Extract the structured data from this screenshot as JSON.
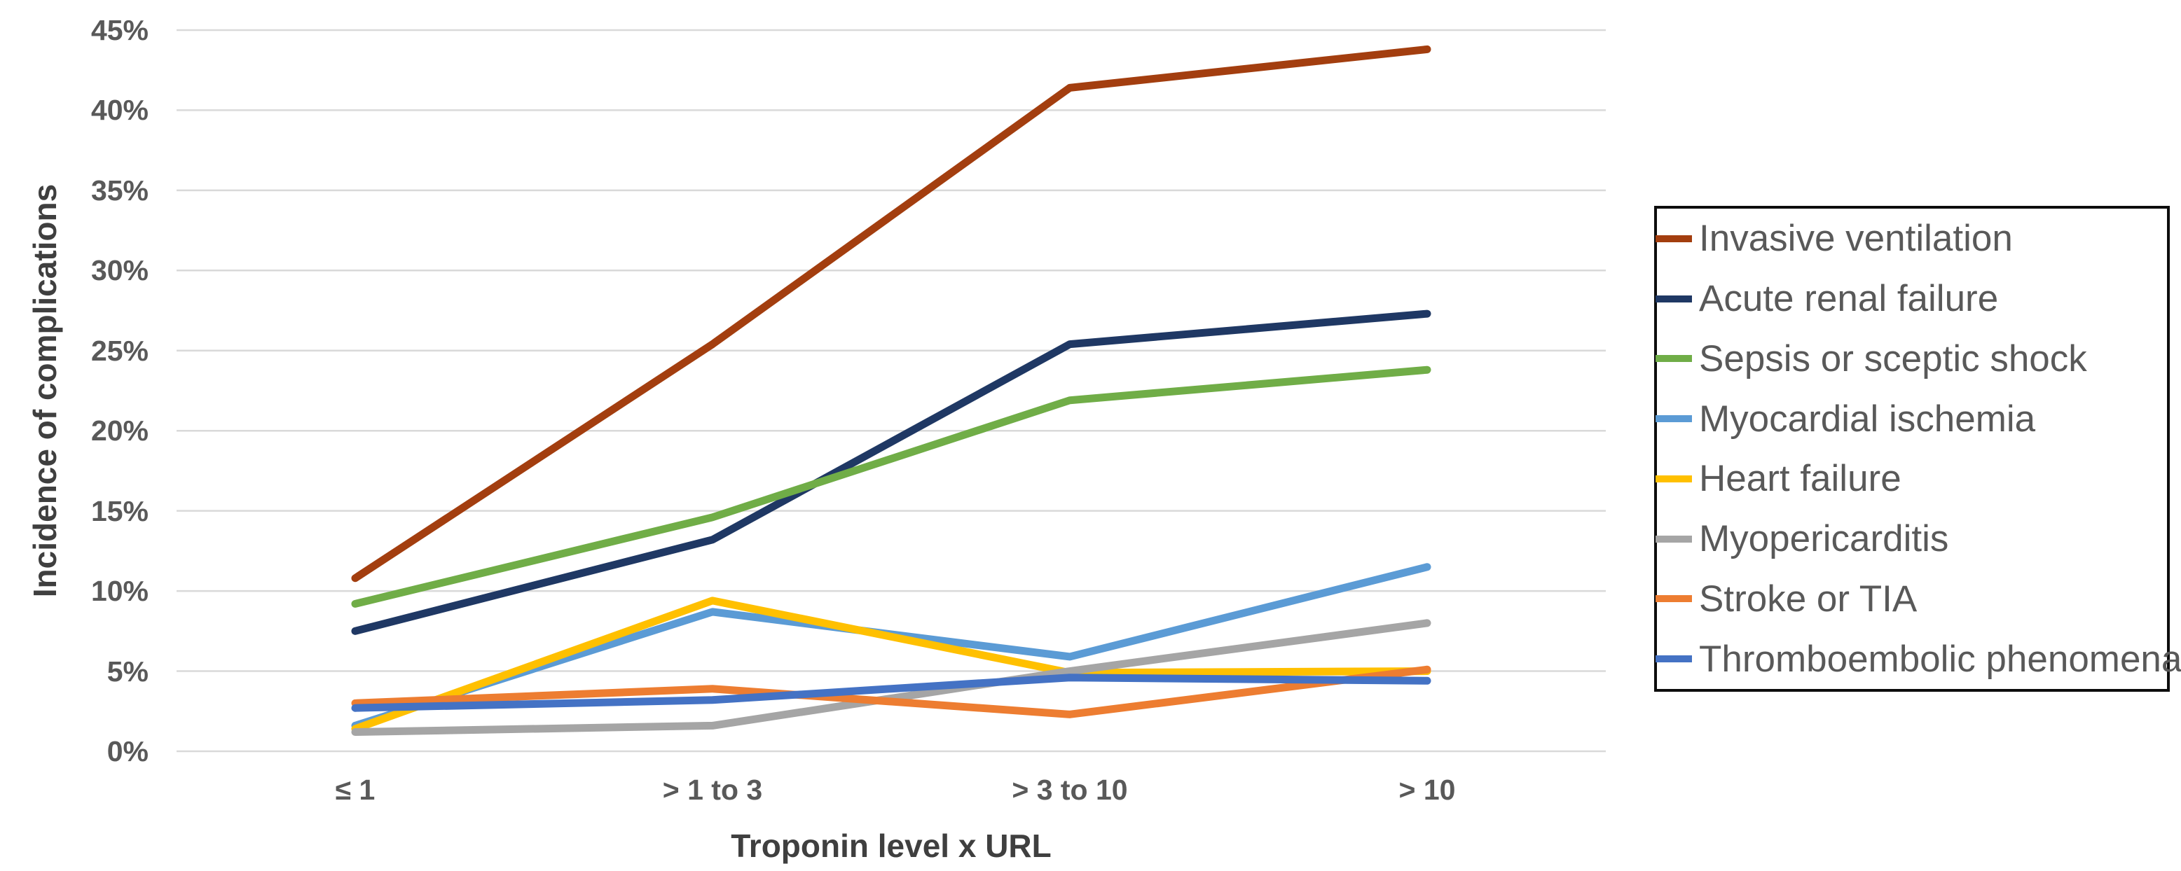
{
  "chart_data": {
    "type": "line",
    "title": "",
    "xlabel": "Troponin level x URL",
    "ylabel": "Incidence of complications",
    "categories": [
      "≤ 1",
      "> 1 to 3",
      "> 3 to 10",
      "> 10"
    ],
    "y_ticks": [
      "0%",
      "5%",
      "10%",
      "15%",
      "20%",
      "25%",
      "30%",
      "35%",
      "40%",
      "45%"
    ],
    "ylim": [
      0,
      45
    ],
    "y_tick_step": 5,
    "grid": "horizontal",
    "legend_position": "right",
    "series": [
      {
        "name": "Invasive ventilation",
        "color": "#A33E0F",
        "values": [
          10.8,
          25.4,
          41.4,
          43.8
        ]
      },
      {
        "name": "Acute renal failure",
        "color": "#1F3864",
        "values": [
          7.5,
          13.2,
          25.4,
          27.3
        ]
      },
      {
        "name": "Sepsis or sceptic shock",
        "color": "#70AD47",
        "values": [
          9.2,
          14.6,
          21.9,
          23.8
        ]
      },
      {
        "name": "Myocardial ischemia",
        "color": "#5B9BD5",
        "values": [
          1.6,
          8.7,
          5.9,
          11.5
        ]
      },
      {
        "name": "Heart failure",
        "color": "#FFC000",
        "values": [
          1.4,
          9.4,
          4.9,
          5.0
        ]
      },
      {
        "name": "Myopericarditis",
        "color": "#A5A5A5",
        "values": [
          1.2,
          1.6,
          5.0,
          8.0
        ]
      },
      {
        "name": "Stroke or TIA",
        "color": "#ED7D31",
        "values": [
          3.0,
          3.9,
          2.3,
          5.1
        ]
      },
      {
        "name": "Thromboembolic phenomena",
        "color": "#4472C4",
        "values": [
          2.7,
          3.2,
          4.6,
          4.4
        ]
      }
    ],
    "colors": {
      "gridline": "#D9D9D9",
      "tick_label": "#595959",
      "axis_title": "#3f3f3f",
      "legend_text": "#595959",
      "legend_border": "#0d0d0d",
      "background": "#FFFFFF"
    }
  }
}
